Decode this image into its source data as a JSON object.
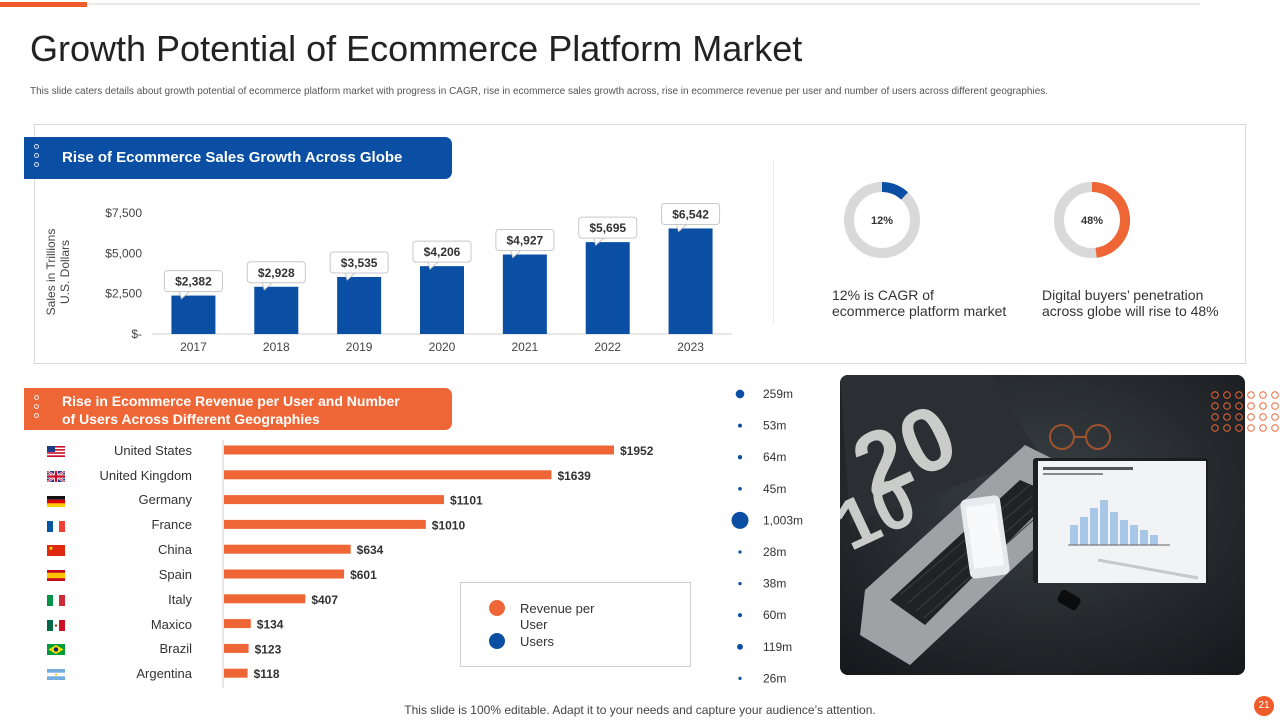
{
  "title": "Growth Potential of Ecommerce Platform Market",
  "subtitle": "This slide caters details about growth potential of ecommerce platform market with progress in CAGR, rise in ecommerce sales growth across, rise in ecommerce revenue per user and number of users across different geographies.",
  "section1": {
    "heading": "Rise of Ecommerce Sales Growth Across Globe"
  },
  "section2": {
    "heading_line1": "Rise in Ecommerce Revenue per User and Number",
    "heading_line2": "of Users Across Different Geographies"
  },
  "donuts": [
    {
      "value": 12,
      "label": "12%",
      "text_line1": "12% is CAGR of",
      "text_line2": "ecommerce platform market",
      "color": "#0a4fa3"
    },
    {
      "value": 48,
      "label": "48%",
      "text_line1": "Digital buyers’ penetration",
      "text_line2": "across globe will  rise to 48%",
      "color": "#ef6636"
    }
  ],
  "legend": {
    "revenue_label_line1": "Revenue   per",
    "revenue_label_line2": "User",
    "users_label": "Users"
  },
  "footer": "This slide is 100% editable. Adapt it to your needs and capture your audience’s attention.",
  "page_number": "21",
  "colors": {
    "blue": "#0a4fa3",
    "orange": "#ef6636"
  },
  "chart_data": [
    {
      "type": "bar",
      "title": "Rise of Ecommerce Sales Growth Across Globe",
      "ylabel_line1": "Sales in Trillions",
      "ylabel_line2": "U.S. Dollars",
      "categories": [
        "2017",
        "2018",
        "2019",
        "2020",
        "2021",
        "2022",
        "2023"
      ],
      "values": [
        2382,
        2928,
        3535,
        4206,
        4927,
        5695,
        6542
      ],
      "data_labels": [
        "$2,382",
        "$2,928",
        "$3,535",
        "$4,206",
        "$4,927",
        "$5,695",
        "$6,542"
      ],
      "yticks": [
        0,
        2500,
        5000,
        7500
      ],
      "ytick_labels": [
        "$-",
        "$2,500",
        "$5,000",
        "$7,500"
      ],
      "ylim": [
        0,
        7500
      ]
    },
    {
      "type": "bar",
      "orientation": "horizontal",
      "title": "Rise in Ecommerce Revenue per User and Number of Users Across Different Geographies",
      "categories": [
        "United States",
        "United Kingdom",
        "Germany",
        "France",
        "China",
        "Spain",
        "Italy",
        "Maxico",
        "Brazil",
        "Argentina"
      ],
      "series": [
        {
          "name": "Revenue per User",
          "values": [
            1952,
            1639,
            1101,
            1010,
            634,
            601,
            407,
            134,
            123,
            118
          ],
          "labels": [
            "$1952",
            "$1639",
            "$1101",
            "$1010",
            "$634",
            "$601",
            "$407",
            "$134",
            "$123",
            "$118"
          ]
        },
        {
          "name": "Users",
          "values_millions": [
            259,
            53,
            64,
            45,
            1003,
            28,
            38,
            60,
            119,
            26
          ],
          "labels": [
            "259m",
            "53m",
            "64m",
            "45m",
            "1,003m",
            "28m",
            "38m",
            "60m",
            "119m",
            "26m"
          ]
        }
      ]
    }
  ]
}
